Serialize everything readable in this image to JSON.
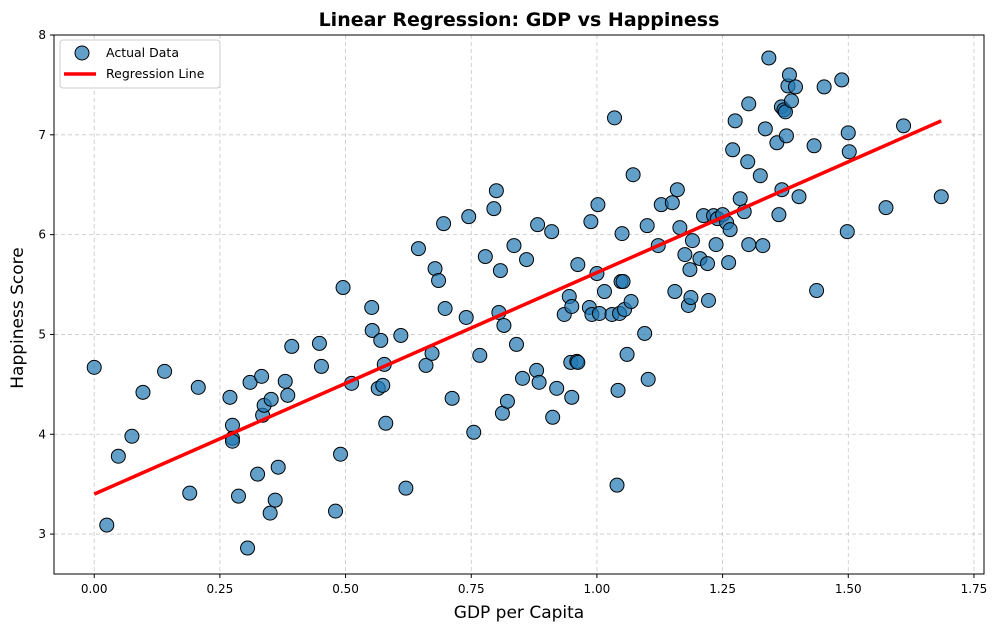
{
  "chart_data": {
    "type": "scatter",
    "title": "Linear Regression: GDP vs Happiness",
    "xlabel": "GDP per Capita",
    "ylabel": "Happiness Score",
    "xlim": [
      -0.08,
      1.77
    ],
    "ylim": [
      2.6,
      8.0
    ],
    "xticks": [
      "0.00",
      "0.25",
      "0.50",
      "0.75",
      "1.00",
      "1.25",
      "1.50",
      "1.75"
    ],
    "xtick_values": [
      0.0,
      0.25,
      0.5,
      0.75,
      1.0,
      1.25,
      1.5,
      1.75
    ],
    "yticks": [
      "3",
      "4",
      "5",
      "6",
      "7",
      "8"
    ],
    "ytick_values": [
      3,
      4,
      5,
      6,
      7,
      8
    ],
    "grid": true,
    "legend_position": "top-left",
    "colors": {
      "points": "#1f77b4",
      "line": "#ff0000"
    },
    "series": [
      {
        "name": "Actual Data",
        "kind": "scatter",
        "points": [
          [
            0.0,
            4.67
          ],
          [
            0.025,
            3.09
          ],
          [
            0.048,
            3.78
          ],
          [
            0.075,
            3.98
          ],
          [
            0.097,
            4.42
          ],
          [
            0.14,
            4.63
          ],
          [
            0.19,
            3.41
          ],
          [
            0.207,
            4.47
          ],
          [
            0.27,
            4.37
          ],
          [
            0.275,
            4.09
          ],
          [
            0.275,
            3.96
          ],
          [
            0.275,
            3.93
          ],
          [
            0.287,
            3.38
          ],
          [
            0.305,
            2.86
          ],
          [
            0.31,
            4.52
          ],
          [
            0.325,
            3.6
          ],
          [
            0.333,
            4.58
          ],
          [
            0.335,
            4.19
          ],
          [
            0.338,
            4.29
          ],
          [
            0.35,
            3.21
          ],
          [
            0.352,
            4.35
          ],
          [
            0.36,
            3.34
          ],
          [
            0.366,
            3.67
          ],
          [
            0.38,
            4.53
          ],
          [
            0.385,
            4.39
          ],
          [
            0.393,
            4.88
          ],
          [
            0.448,
            4.91
          ],
          [
            0.452,
            4.68
          ],
          [
            0.48,
            3.23
          ],
          [
            0.49,
            3.8
          ],
          [
            0.495,
            5.47
          ],
          [
            0.512,
            4.51
          ],
          [
            0.552,
            5.27
          ],
          [
            0.553,
            5.04
          ],
          [
            0.565,
            4.46
          ],
          [
            0.57,
            4.94
          ],
          [
            0.574,
            4.49
          ],
          [
            0.577,
            4.7
          ],
          [
            0.58,
            4.11
          ],
          [
            0.61,
            4.99
          ],
          [
            0.62,
            3.46
          ],
          [
            0.645,
            5.86
          ],
          [
            0.66,
            4.69
          ],
          [
            0.672,
            4.81
          ],
          [
            0.678,
            5.66
          ],
          [
            0.685,
            5.54
          ],
          [
            0.695,
            6.11
          ],
          [
            0.698,
            5.26
          ],
          [
            0.712,
            4.36
          ],
          [
            0.74,
            5.17
          ],
          [
            0.745,
            6.18
          ],
          [
            0.755,
            4.02
          ],
          [
            0.767,
            4.79
          ],
          [
            0.778,
            5.78
          ],
          [
            0.795,
            6.26
          ],
          [
            0.8,
            6.44
          ],
          [
            0.805,
            5.22
          ],
          [
            0.808,
            5.64
          ],
          [
            0.812,
            4.21
          ],
          [
            0.815,
            5.09
          ],
          [
            0.822,
            4.33
          ],
          [
            0.835,
            5.89
          ],
          [
            0.84,
            4.9
          ],
          [
            0.852,
            4.56
          ],
          [
            0.86,
            5.75
          ],
          [
            0.88,
            4.64
          ],
          [
            0.882,
            6.1
          ],
          [
            0.885,
            4.52
          ],
          [
            0.91,
            6.03
          ],
          [
            0.912,
            4.17
          ],
          [
            0.92,
            4.46
          ],
          [
            0.935,
            5.2
          ],
          [
            0.945,
            5.38
          ],
          [
            0.948,
            4.72
          ],
          [
            0.95,
            4.37
          ],
          [
            0.95,
            5.28
          ],
          [
            0.96,
            4.73
          ],
          [
            0.962,
            5.7
          ],
          [
            0.962,
            4.72
          ],
          [
            0.985,
            5.27
          ],
          [
            0.988,
            6.13
          ],
          [
            0.99,
            5.2
          ],
          [
            1.0,
            5.61
          ],
          [
            1.002,
            6.3
          ],
          [
            1.005,
            5.21
          ],
          [
            1.015,
            5.43
          ],
          [
            1.03,
            5.2
          ],
          [
            1.035,
            7.17
          ],
          [
            1.04,
            3.49
          ],
          [
            1.042,
            4.44
          ],
          [
            1.045,
            5.21
          ],
          [
            1.048,
            5.53
          ],
          [
            1.05,
            6.01
          ],
          [
            1.052,
            5.53
          ],
          [
            1.055,
            5.25
          ],
          [
            1.06,
            4.8
          ],
          [
            1.068,
            5.33
          ],
          [
            1.072,
            6.6
          ],
          [
            1.095,
            5.01
          ],
          [
            1.1,
            6.09
          ],
          [
            1.102,
            4.55
          ],
          [
            1.122,
            5.89
          ],
          [
            1.128,
            6.3
          ],
          [
            1.15,
            6.32
          ],
          [
            1.155,
            5.43
          ],
          [
            1.16,
            6.45
          ],
          [
            1.165,
            6.07
          ],
          [
            1.175,
            5.8
          ],
          [
            1.182,
            5.29
          ],
          [
            1.185,
            5.65
          ],
          [
            1.187,
            5.37
          ],
          [
            1.19,
            5.94
          ],
          [
            1.205,
            5.76
          ],
          [
            1.212,
            6.19
          ],
          [
            1.22,
            5.71
          ],
          [
            1.222,
            5.34
          ],
          [
            1.232,
            6.19
          ],
          [
            1.237,
            5.9
          ],
          [
            1.24,
            6.16
          ],
          [
            1.25,
            6.2
          ],
          [
            1.258,
            6.12
          ],
          [
            1.262,
            5.72
          ],
          [
            1.265,
            6.05
          ],
          [
            1.27,
            6.85
          ],
          [
            1.275,
            7.14
          ],
          [
            1.285,
            6.36
          ],
          [
            1.293,
            6.23
          ],
          [
            1.3,
            6.73
          ],
          [
            1.302,
            7.31
          ],
          [
            1.302,
            5.9
          ],
          [
            1.325,
            6.59
          ],
          [
            1.33,
            5.89
          ],
          [
            1.335,
            7.06
          ],
          [
            1.342,
            7.77
          ],
          [
            1.358,
            6.92
          ],
          [
            1.362,
            6.2
          ],
          [
            1.367,
            7.28
          ],
          [
            1.368,
            6.45
          ],
          [
            1.372,
            7.25
          ],
          [
            1.375,
            7.23
          ],
          [
            1.377,
            6.99
          ],
          [
            1.38,
            7.49
          ],
          [
            1.383,
            7.6
          ],
          [
            1.387,
            7.34
          ],
          [
            1.395,
            7.48
          ],
          [
            1.402,
            6.38
          ],
          [
            1.432,
            6.89
          ],
          [
            1.437,
            5.44
          ],
          [
            1.452,
            7.48
          ],
          [
            1.487,
            7.55
          ],
          [
            1.498,
            6.03
          ],
          [
            1.5,
            7.02
          ],
          [
            1.502,
            6.83
          ],
          [
            1.575,
            6.27
          ],
          [
            1.61,
            7.09
          ],
          [
            1.685,
            6.38
          ]
        ]
      },
      {
        "name": "Regression Line",
        "kind": "line",
        "x": [
          0.0,
          1.685
        ],
        "y": [
          3.4,
          7.14
        ]
      }
    ]
  }
}
